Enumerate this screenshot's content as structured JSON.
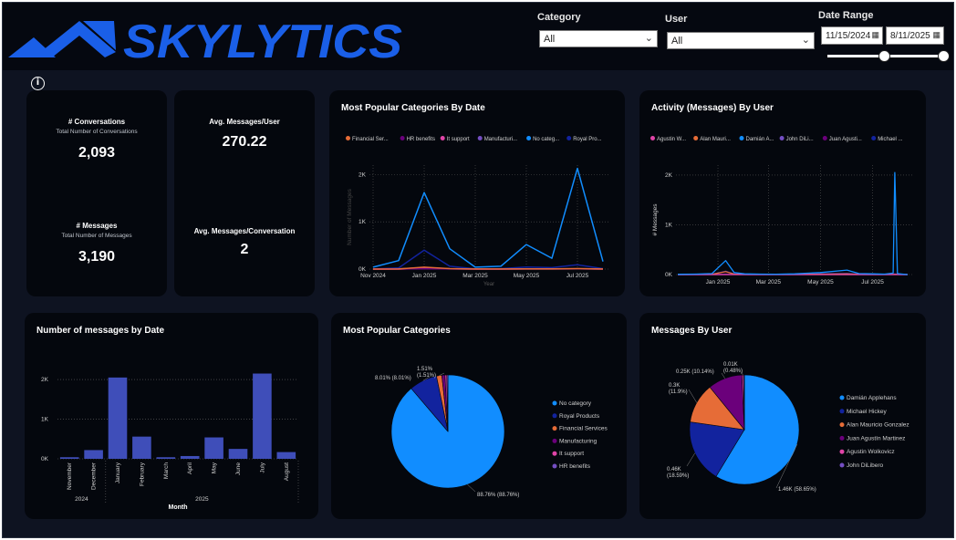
{
  "header": {
    "logo_text": "SKYLYTICS",
    "filters": {
      "category": {
        "label": "Category",
        "value": "All"
      },
      "user": {
        "label": "User",
        "value": "All"
      },
      "date_range": {
        "label": "Date Range",
        "start": "11/15/2024",
        "end": "8/11/2025"
      }
    }
  },
  "colors": {
    "background": "#0e1321",
    "card": "#04070d",
    "brand_blue": "#1a5fe8",
    "primary_series": "#118dff",
    "bar": "#3f4eb9"
  },
  "kpis": {
    "conversations": {
      "title": "# Conversations",
      "subtitle": "Total Number of Conversations",
      "value": "2,093"
    },
    "messages": {
      "title": "# Messages",
      "subtitle": "Total Number of Messages",
      "value": "3,190"
    },
    "avg_per_user": {
      "title": "Avg. Messages/User",
      "value": "270.22"
    },
    "avg_per_conversation": {
      "title": "Avg. Messages/Conversation",
      "value": "2"
    }
  },
  "chart_data": [
    {
      "id": "categories_by_date",
      "type": "line",
      "title": "Most Popular Categories By Date",
      "xlabel": "Year",
      "ylabel": "Number of Messages",
      "legend_position": "top",
      "x_ticks": [
        "Nov 2024",
        "Jan 2025",
        "Mar 2025",
        "May 2025",
        "Jul 2025"
      ],
      "y_ticks": [
        "0K",
        "1K",
        "2K"
      ],
      "ylim": [
        0,
        2200
      ],
      "grid": true,
      "x": [
        "Nov 2024",
        "Dec 2024",
        "Jan 2025",
        "Feb 2025",
        "Mar 2025",
        "Apr 2025",
        "May 2025",
        "Jun 2025",
        "Jul 2025",
        "Aug 2025"
      ],
      "series": [
        {
          "name": "Financial Ser...",
          "color": "#e66c37",
          "values": [
            0,
            2,
            40,
            10,
            2,
            2,
            5,
            5,
            10,
            2
          ]
        },
        {
          "name": "HR benefits",
          "color": "#6b007b",
          "values": [
            0,
            0,
            10,
            2,
            0,
            0,
            2,
            2,
            5,
            0
          ]
        },
        {
          "name": "It support",
          "color": "#e044a7",
          "values": [
            0,
            0,
            12,
            3,
            0,
            0,
            2,
            2,
            5,
            0
          ]
        },
        {
          "name": "Manufacturi...",
          "color": "#744ec2",
          "values": [
            0,
            3,
            30,
            8,
            1,
            2,
            4,
            4,
            8,
            1
          ]
        },
        {
          "name": "No categ...",
          "color": "#118dff",
          "values": [
            40,
            180,
            1620,
            430,
            40,
            60,
            520,
            230,
            2130,
            160
          ]
        },
        {
          "name": "Royal Pro...",
          "color": "#12239e",
          "values": [
            2,
            25,
            400,
            60,
            6,
            10,
            45,
            30,
            90,
            10
          ]
        }
      ]
    },
    {
      "id": "activity_by_user",
      "type": "line",
      "title": "Activity (Messages) By User",
      "ylabel": "# Messages",
      "legend_position": "top",
      "x_ticks": [
        "Jan 2025",
        "Mar 2025",
        "May 2025",
        "Jul 2025"
      ],
      "y_ticks": [
        "0K",
        "1K",
        "2K"
      ],
      "ylim": [
        0,
        2200
      ],
      "grid": true,
      "x": [
        "2024-11-15",
        "2024-12-05",
        "2024-12-25",
        "2025-01-10",
        "2025-01-20",
        "2025-02-01",
        "2025-02-20",
        "2025-03-10",
        "2025-04-01",
        "2025-05-01",
        "2025-06-01",
        "2025-06-15",
        "2025-07-01",
        "2025-07-15",
        "2025-07-25",
        "2025-07-27",
        "2025-07-30",
        "2025-08-05",
        "2025-08-11"
      ],
      "series": [
        {
          "name": "Agustin W...",
          "color": "#e044a7",
          "values": [
            0,
            0,
            0,
            0,
            0,
            0,
            0,
            0,
            0,
            0,
            0,
            0,
            0,
            0,
            0,
            0,
            0,
            0,
            0
          ]
        },
        {
          "name": "Alan Mauri...",
          "color": "#e66c37",
          "values": [
            0,
            2,
            5,
            60,
            10,
            5,
            3,
            2,
            4,
            10,
            12,
            5,
            4,
            3,
            2,
            8,
            3,
            2,
            0
          ]
        },
        {
          "name": "Damián A...",
          "color": "#118dff",
          "values": [
            5,
            10,
            20,
            280,
            40,
            15,
            10,
            8,
            15,
            40,
            90,
            20,
            15,
            10,
            30,
            2050,
            20,
            10,
            0
          ]
        },
        {
          "name": "John DiLi...",
          "color": "#744ec2",
          "values": [
            0,
            0,
            0,
            0,
            0,
            0,
            0,
            0,
            0,
            0,
            0,
            0,
            0,
            0,
            0,
            0,
            0,
            0,
            0
          ]
        },
        {
          "name": "Juan Agusti...",
          "color": "#6b007b",
          "values": [
            0,
            0,
            2,
            10,
            2,
            1,
            0,
            1,
            2,
            3,
            4,
            2,
            1,
            1,
            1,
            4,
            1,
            0,
            0
          ]
        },
        {
          "name": "Michael ...",
          "color": "#12239e",
          "values": [
            0,
            3,
            8,
            70,
            15,
            6,
            4,
            5,
            8,
            15,
            25,
            8,
            6,
            5,
            6,
            12,
            5,
            3,
            0
          ]
        }
      ]
    },
    {
      "id": "messages_by_date",
      "type": "bar",
      "title": "Number of messages by Date",
      "xlabel": "Month",
      "categories": [
        "November",
        "December",
        "January",
        "February",
        "March",
        "April",
        "May",
        "June",
        "July",
        "August"
      ],
      "year_groups": [
        {
          "label": "2024",
          "count": 2
        },
        {
          "label": "2025",
          "count": 8
        }
      ],
      "values": [
        40,
        220,
        2050,
        560,
        40,
        70,
        540,
        250,
        2150,
        170
      ],
      "y_ticks": [
        "0K",
        "1K",
        "2K"
      ],
      "ylim": [
        0,
        2300
      ],
      "color": "#3f4eb9",
      "grid": true
    },
    {
      "id": "popular_categories",
      "type": "pie",
      "title": "Most Popular Categories",
      "legend_position": "right",
      "slices": [
        {
          "name": "No category",
          "pct": 88.76,
          "label": "88.76% (88.76%)",
          "color": "#118dff"
        },
        {
          "name": "Royal Products",
          "pct": 8.01,
          "label": "8.01% (8.01%)",
          "color": "#12239e"
        },
        {
          "name": "Financial Services",
          "pct": 1.51,
          "label": "1.51% (1.51%)",
          "color": "#e66c37"
        },
        {
          "name": "Manufacturing",
          "pct": 0.9,
          "label": "",
          "color": "#6b007b"
        },
        {
          "name": "It support",
          "pct": 0.5,
          "label": "",
          "color": "#e044a7"
        },
        {
          "name": "HR benefits",
          "pct": 0.32,
          "label": "",
          "color": "#744ec2"
        }
      ]
    },
    {
      "id": "messages_by_user",
      "type": "pie",
      "title": "Messages By User",
      "legend_position": "right",
      "slices": [
        {
          "name": "Damián Applehans",
          "pct": 58.65,
          "label": "1.46K (58.65%)",
          "color": "#118dff"
        },
        {
          "name": "Michael Hickey",
          "pct": 18.59,
          "label": "0.46K (18.59%)",
          "color": "#12239e"
        },
        {
          "name": "Alan Mauricio Gonzalez",
          "pct": 11.9,
          "label": "0.3K (11.9%)",
          "color": "#e66c37"
        },
        {
          "name": "Juan Agustín Martinez",
          "pct": 10.14,
          "label": "0.25K (10.14%)",
          "color": "#6b007b"
        },
        {
          "name": "Agustin Wolkovicz",
          "pct": 0.48,
          "label": "0.01K (0.48%)",
          "color": "#e044a7"
        },
        {
          "name": "John DiLibero",
          "pct": 0.24,
          "label": "",
          "color": "#744ec2"
        }
      ]
    }
  ]
}
